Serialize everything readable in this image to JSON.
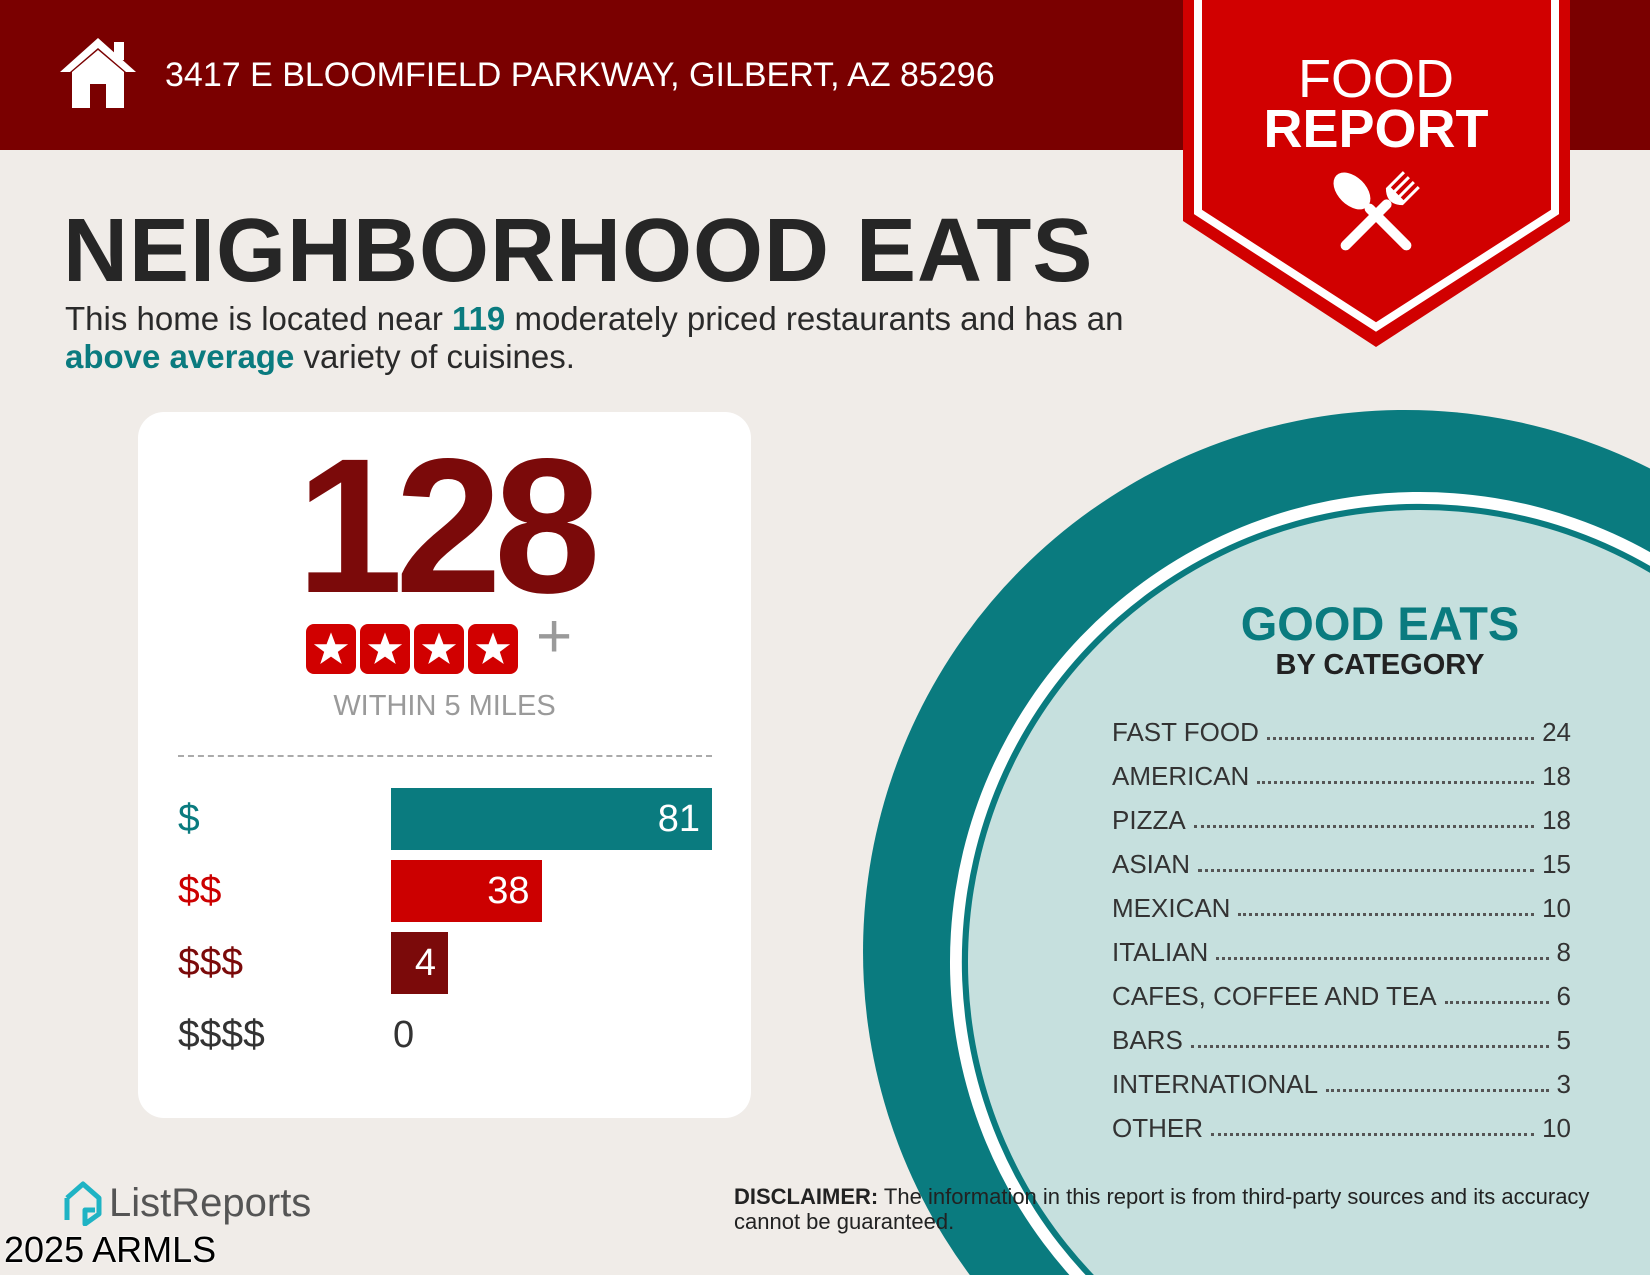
{
  "header": {
    "address": "3417 E BLOOMFIELD PARKWAY, GILBERT, AZ 85296",
    "icon": "home-icon"
  },
  "badge": {
    "line1": "FOOD",
    "line2": "REPORT",
    "icon": "spoon-fork-icon"
  },
  "title": "NEIGHBORHOOD EATS",
  "intro": {
    "p1": "This home is located near ",
    "count": "119",
    "p2": " moderately priced restaurants and has an ",
    "variety": "above average",
    "p3": " variety of cuisines."
  },
  "summary": {
    "total": "128",
    "stars": 4,
    "plus": "+",
    "radius": "WITHIN 5 MILES"
  },
  "price_levels": [
    {
      "label": "$",
      "value": 81,
      "color": "#0a7b7f"
    },
    {
      "label": "$$",
      "value": 38,
      "color": "#cc0000"
    },
    {
      "label": "$$$",
      "value": 4,
      "color": "#7b0a0a"
    },
    {
      "label": "$$$$",
      "value": 0,
      "color": "#333333"
    }
  ],
  "categories": {
    "title": "GOOD EATS",
    "subtitle": "BY CATEGORY",
    "items": [
      {
        "name": "FAST FOOD",
        "count": "24"
      },
      {
        "name": "AMERICAN",
        "count": "18"
      },
      {
        "name": "PIZZA",
        "count": "18"
      },
      {
        "name": "ASIAN",
        "count": "15"
      },
      {
        "name": "MEXICAN",
        "count": "10"
      },
      {
        "name": "ITALIAN",
        "count": "8"
      },
      {
        "name": "CAFES, COFFEE AND TEA",
        "count": "6"
      },
      {
        "name": "BARS",
        "count": "5"
      },
      {
        "name": "INTERNATIONAL",
        "count": "3"
      },
      {
        "name": "OTHER",
        "count": "10"
      }
    ]
  },
  "disclaimer": {
    "label": "DISCLAIMER:",
    "text": " The information in this report is from third-party sources and its accuracy cannot be guaranteed."
  },
  "footer": {
    "logo": "ListReports",
    "watermark": "2025 ARMLS"
  },
  "colors": {
    "header": "#7a0000",
    "badge": "#d10000",
    "teal": "#0a7b7f",
    "light_teal": "#c6e0de"
  }
}
